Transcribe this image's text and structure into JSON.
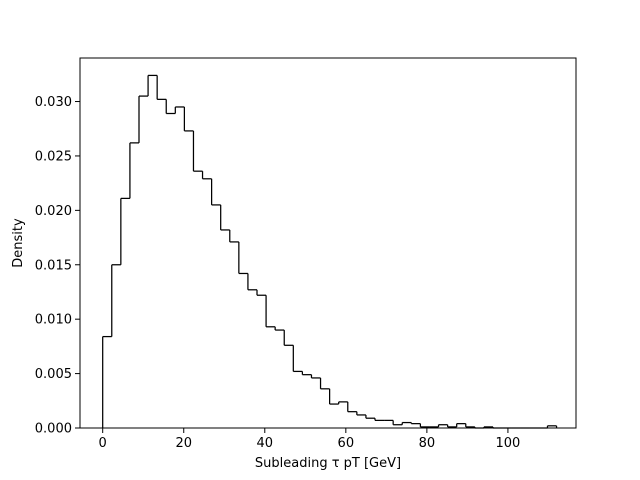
{
  "chart_data": {
    "type": "histogram",
    "histtype": "step",
    "xlabel": "Subleading τ pT [GeV]",
    "ylabel": "Density",
    "xlim": [
      -5.6,
      116.8
    ],
    "ylim": [
      0,
      0.034
    ],
    "grid": false,
    "line_color": "#000000",
    "bin_edges": [
      0,
      2.24,
      4.48,
      6.72,
      8.96,
      11.2,
      13.44,
      15.68,
      17.92,
      20.16,
      22.4,
      24.64,
      26.88,
      29.12,
      31.36,
      33.6,
      35.84,
      38.08,
      40.32,
      42.56,
      44.8,
      47.04,
      49.28,
      51.52,
      53.76,
      56,
      58.24,
      60.48,
      62.72,
      64.96,
      67.2,
      69.44,
      71.68,
      73.92,
      76.16,
      78.4,
      80.64,
      82.88,
      85.12,
      87.36,
      89.6,
      91.84,
      94.08,
      96.32,
      98.56,
      100.8,
      103.04,
      105.28,
      107.52,
      109.76,
      112.0
    ],
    "values": [
      0.0084,
      0.015,
      0.0211,
      0.0262,
      0.0305,
      0.0324,
      0.0302,
      0.0289,
      0.0295,
      0.0273,
      0.0236,
      0.0229,
      0.0205,
      0.0182,
      0.0171,
      0.0142,
      0.0127,
      0.0122,
      0.0093,
      0.009,
      0.0076,
      0.0052,
      0.0049,
      0.0046,
      0.0036,
      0.0022,
      0.0024,
      0.0015,
      0.0012,
      0.0009,
      0.0007,
      0.0007,
      0.0003,
      0.0005,
      0.0004,
      0.0001,
      0.0001,
      0.0003,
      0.0001,
      0.0004,
      0.0001,
      0.0,
      0.0001,
      0.0,
      0.0,
      0.0,
      0.0,
      0.0,
      0.0,
      0.0002
    ],
    "xticks": [
      0,
      20,
      40,
      60,
      80,
      100
    ],
    "xtick_labels": [
      "0",
      "20",
      "40",
      "60",
      "80",
      "100"
    ],
    "yticks": [
      0.0,
      0.005,
      0.01,
      0.015,
      0.02,
      0.025,
      0.03
    ],
    "ytick_labels": [
      "0.000",
      "0.005",
      "0.010",
      "0.015",
      "0.020",
      "0.025",
      "0.030"
    ]
  }
}
